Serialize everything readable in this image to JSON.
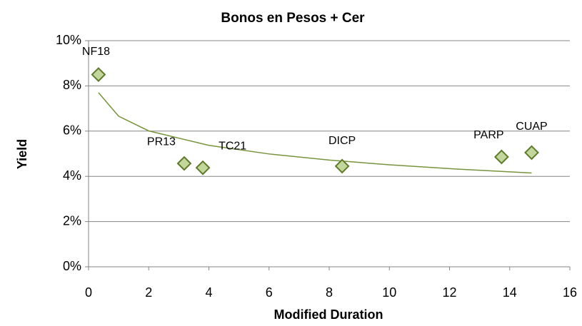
{
  "chart_data": {
    "type": "scatter",
    "title": "Bonos en Pesos + Cer",
    "x_label": "Modified Duration",
    "y_label": "Yield",
    "series": [
      {
        "labels": [
          "NF18",
          "PR13",
          "TC21",
          "DICP",
          "PARP",
          "CUAP"
        ],
        "x": [
          0.33,
          3.18,
          3.8,
          8.43,
          13.73,
          14.73
        ],
        "values": [
          8.5,
          4.57,
          4.38,
          4.45,
          4.86,
          5.05
        ],
        "color": "#c3d69b",
        "edge_color": "#5f7a2c"
      }
    ],
    "trendline": {
      "color": "#77933c",
      "x": [
        0.33,
        1,
        2,
        4,
        6,
        8,
        10,
        12,
        14.73
      ],
      "values": [
        7.7,
        6.66,
        6.01,
        5.37,
        4.99,
        4.72,
        4.51,
        4.34,
        4.15
      ]
    },
    "xlim": [
      0,
      16
    ],
    "xticks": [
      0,
      2,
      4,
      6,
      8,
      10,
      12,
      14,
      16
    ],
    "ylim": [
      0,
      10
    ],
    "yticks": [
      {
        "value": 0,
        "label": "0%"
      },
      {
        "value": 2,
        "label": "2%"
      },
      {
        "value": 4,
        "label": "4%"
      },
      {
        "value": 6,
        "label": "6%"
      },
      {
        "value": 8,
        "label": "8%"
      },
      {
        "value": 10,
        "label": "10%"
      }
    ],
    "grid": true
  }
}
